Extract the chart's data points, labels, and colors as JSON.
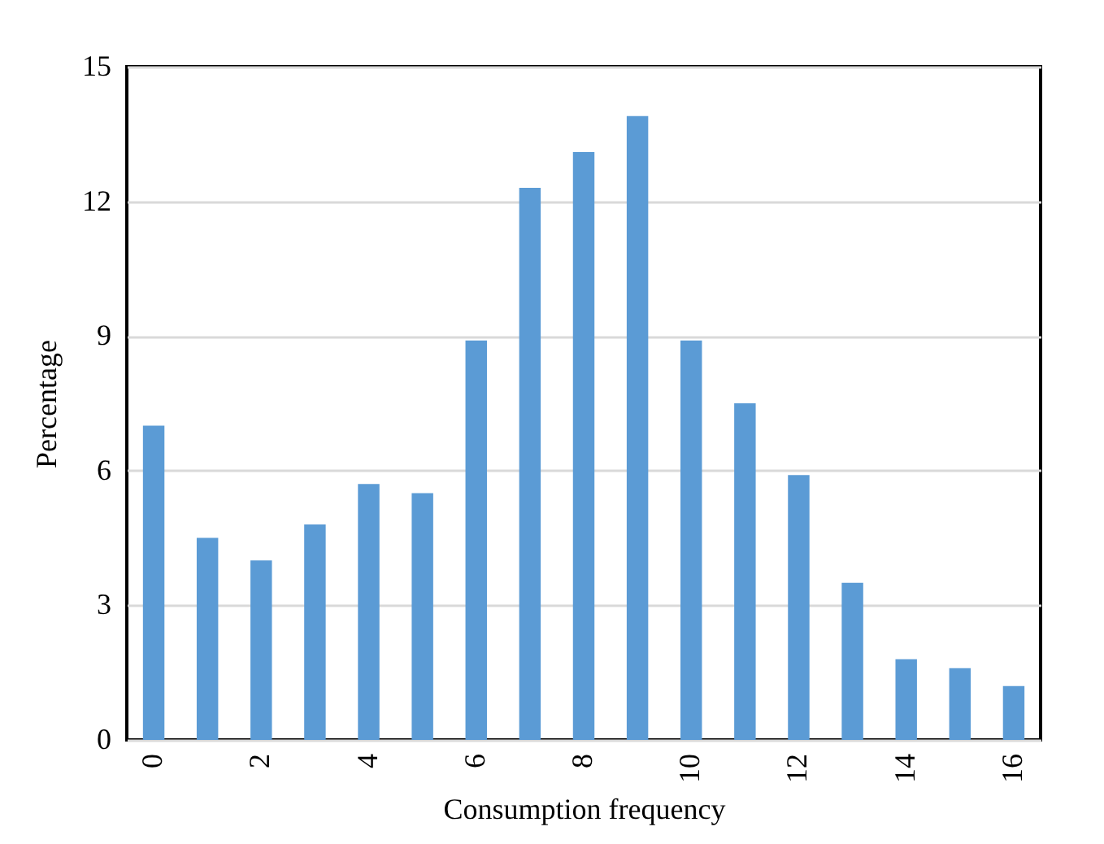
{
  "chart_data": {
    "type": "bar",
    "xlabel": "Consumption frequency",
    "ylabel": "Percentage",
    "categories": [
      "0",
      null,
      "2",
      null,
      "4",
      null,
      "6",
      null,
      "8",
      null,
      "10",
      null,
      "12",
      null,
      "14",
      null,
      "16"
    ],
    "values": [
      7.0,
      4.5,
      4.0,
      4.8,
      5.7,
      5.5,
      8.9,
      12.3,
      13.1,
      13.9,
      8.9,
      7.5,
      5.9,
      3.5,
      1.8,
      1.6,
      1.2
    ],
    "color": "#5b9bd5",
    "ylim": [
      0,
      15
    ],
    "yticks": [
      0,
      3,
      6,
      9,
      12,
      15
    ],
    "grid": "y"
  }
}
